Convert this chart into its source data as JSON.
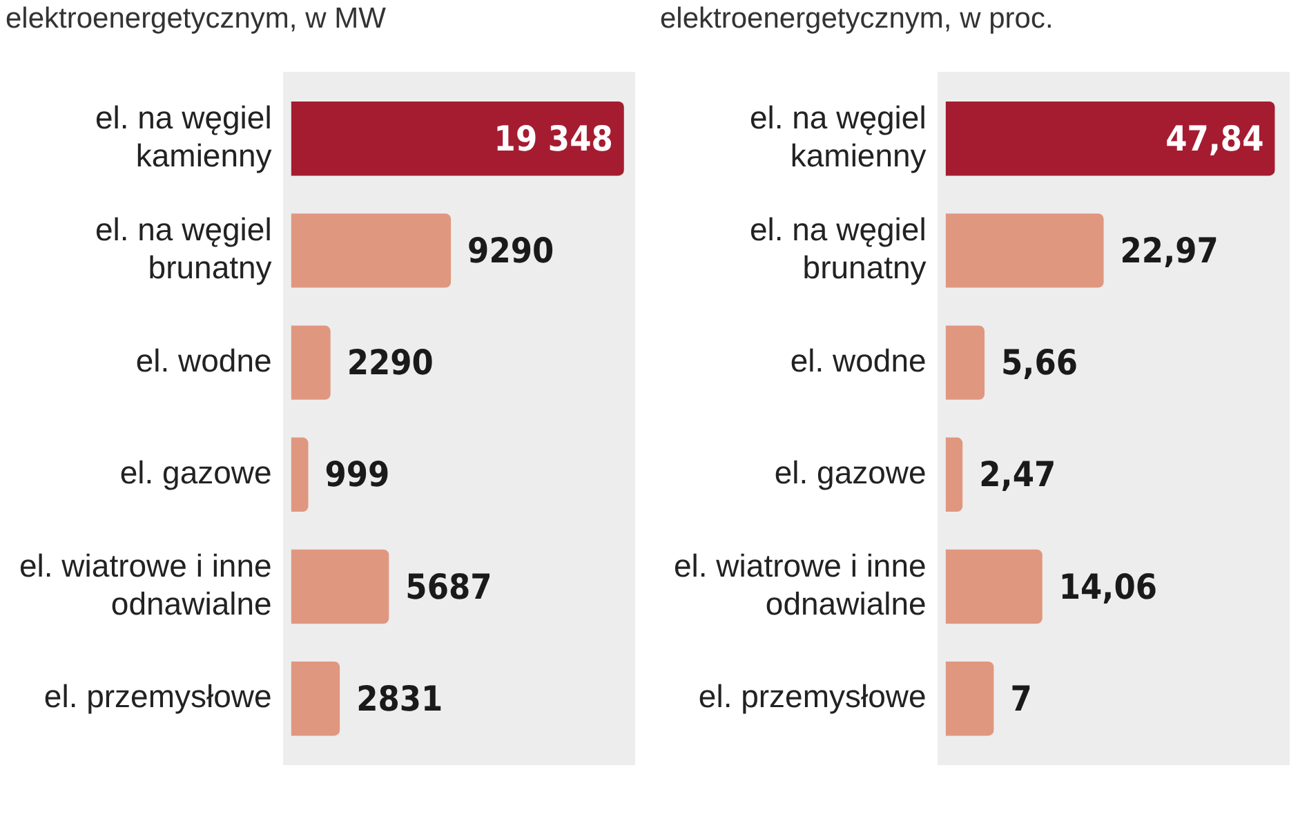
{
  "chart_data": [
    {
      "type": "bar",
      "orientation": "horizontal",
      "title": "elektroenergetycznym, w MW",
      "categories": [
        "el. na węgiel kamienny",
        "el. na węgiel brunatny",
        "el. wodne",
        "el. gazowe",
        "el. wiatrowe i inne odnawialne",
        "el. przemysłowe"
      ],
      "values": [
        19348,
        9290,
        2290,
        999,
        5687,
        2831
      ],
      "value_labels": [
        "19 348",
        "9290",
        "2290",
        "999",
        "5687",
        "2831"
      ],
      "colors": [
        "#a51c30",
        "#e0977f",
        "#e0977f",
        "#e0977f",
        "#e0977f",
        "#e0977f"
      ],
      "tick_labels": "y"
    },
    {
      "type": "bar",
      "orientation": "horizontal",
      "title": "elektroenergetycznym, w proc.",
      "categories": [
        "el. na węgiel kamienny",
        "el. na węgiel brunatny",
        "el. wodne",
        "el. gazowe",
        "el. wiatrowe i inne odnawialne",
        "el. przemysłowe"
      ],
      "values": [
        47.84,
        22.97,
        5.66,
        2.47,
        14.06,
        7
      ],
      "value_labels": [
        "47,84",
        "22,97",
        "5,66",
        "2,47",
        "14,06",
        "7"
      ],
      "colors": [
        "#a51c30",
        "#e0977f",
        "#e0977f",
        "#e0977f",
        "#e0977f",
        "#e0977f"
      ],
      "tick_labels": "y"
    }
  ]
}
